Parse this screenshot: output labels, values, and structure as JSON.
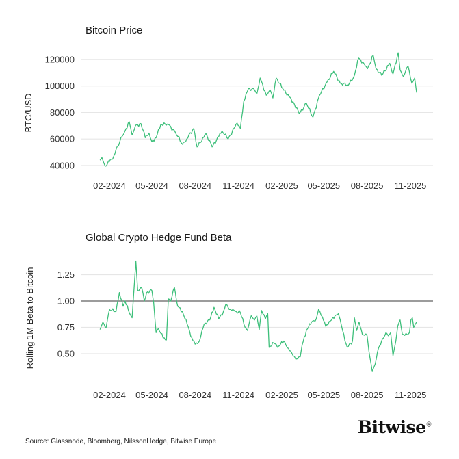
{
  "colors": {
    "line": "#3dbf7a",
    "grid": "#e6e6e6",
    "reference": "#666666"
  },
  "source": "Source: Glassnode, Bloomberg, NilssonHedge, Bitwise Europe",
  "logo": "Bitwise",
  "chart_data": [
    {
      "type": "line",
      "title": "Bitcoin Price",
      "xlabel": "",
      "ylabel": "BTC/USD",
      "ylim": [
        35000,
        125000
      ],
      "yticks": [
        "40000",
        "60000",
        "80000",
        "100000",
        "120000"
      ],
      "xticks": [
        "02-2024",
        "05-2024",
        "08-2024",
        "11-2024",
        "02-2025",
        "05-2025",
        "08-2025",
        "11-2025"
      ],
      "grid": true,
      "series": [
        {
          "x": [
            "2024-01-12",
            "2024-01-16",
            "2024-01-20",
            "2024-01-23",
            "2024-02-01",
            "2024-02-10",
            "2024-02-15",
            "2024-02-28",
            "2024-03-05",
            "2024-03-14",
            "2024-03-20",
            "2024-03-27",
            "2024-04-08",
            "2024-04-17",
            "2024-04-25",
            "2024-05-01",
            "2024-05-10",
            "2024-05-20",
            "2024-06-05",
            "2024-06-20",
            "2024-07-05",
            "2024-07-14",
            "2024-07-29",
            "2024-08-05",
            "2024-08-24",
            "2024-09-06",
            "2024-09-27",
            "2024-10-10",
            "2024-10-29",
            "2024-11-05",
            "2024-11-12",
            "2024-11-22",
            "2024-12-05",
            "2024-12-10",
            "2024-12-17",
            "2024-12-30",
            "2025-01-07",
            "2025-01-13",
            "2025-01-20",
            "2025-02-03",
            "2025-02-25",
            "2025-03-10",
            "2025-03-25",
            "2025-04-08",
            "2025-04-22",
            "2025-05-08",
            "2025-05-22",
            "2025-06-05",
            "2025-06-22",
            "2025-07-05",
            "2025-07-14",
            "2025-07-25",
            "2025-08-02",
            "2025-08-14",
            "2025-08-20",
            "2025-09-01",
            "2025-09-18",
            "2025-09-25",
            "2025-10-06",
            "2025-10-10",
            "2025-10-17",
            "2025-10-27",
            "2025-11-04",
            "2025-11-10",
            "2025-11-14"
          ],
          "values": [
            44000,
            46000,
            42000,
            39500,
            43000,
            47000,
            52000,
            62000,
            66000,
            73000,
            63000,
            70000,
            71500,
            61000,
            64500,
            58000,
            61000,
            71000,
            71000,
            65000,
            56000,
            60000,
            68000,
            54000,
            64000,
            54000,
            66000,
            60000,
            72000,
            68000,
            88000,
            98000,
            97000,
            94000,
            106000,
            93000,
            97000,
            91000,
            106000,
            98000,
            88000,
            79000,
            87000,
            76500,
            93000,
            103000,
            111000,
            102000,
            100500,
            108000,
            121000,
            117000,
            113000,
            123000,
            113000,
            108000,
            117000,
            109000,
            125000,
            112000,
            107000,
            115000,
            102000,
            106000,
            95000
          ]
        }
      ]
    },
    {
      "type": "line",
      "title": "Global Crypto Hedge Fund Beta",
      "xlabel": "",
      "ylabel": "Rolling 1M Beta to Bitcoin",
      "ylim": [
        0.25,
        1.45
      ],
      "yticks": [
        "0.50",
        "0.75",
        "1.00",
        "1.25"
      ],
      "reference_line": 1.0,
      "xticks": [
        "02-2024",
        "05-2024",
        "08-2024",
        "11-2024",
        "02-2025",
        "05-2025",
        "08-2025",
        "11-2025"
      ],
      "grid": true,
      "series": [
        {
          "x": [
            "2024-01-12",
            "2024-01-18",
            "2024-01-25",
            "2024-02-01",
            "2024-02-15",
            "2024-02-22",
            "2024-03-01",
            "2024-03-05",
            "2024-03-15",
            "2024-03-20",
            "2024-03-25",
            "2024-03-28",
            "2024-04-01",
            "2024-04-10",
            "2024-04-15",
            "2024-04-20",
            "2024-05-01",
            "2024-05-05",
            "2024-05-10",
            "2024-05-15",
            "2024-05-25",
            "2024-06-01",
            "2024-06-05",
            "2024-06-10",
            "2024-06-18",
            "2024-06-25",
            "2024-07-05",
            "2024-07-15",
            "2024-07-25",
            "2024-08-01",
            "2024-08-10",
            "2024-08-20",
            "2024-09-01",
            "2024-09-10",
            "2024-09-20",
            "2024-09-30",
            "2024-10-05",
            "2024-10-15",
            "2024-10-25",
            "2024-11-05",
            "2024-11-15",
            "2024-11-20",
            "2024-11-28",
            "2024-12-05",
            "2024-12-10",
            "2024-12-15",
            "2024-12-20",
            "2024-12-28",
            "2025-01-02",
            "2025-01-05",
            "2025-01-15",
            "2025-01-25",
            "2025-02-05",
            "2025-02-15",
            "2025-02-25",
            "2025-03-05",
            "2025-03-12",
            "2025-03-16",
            "2025-03-25",
            "2025-04-05",
            "2025-04-15",
            "2025-04-20",
            "2025-04-28",
            "2025-05-05",
            "2025-05-15",
            "2025-05-25",
            "2025-06-01",
            "2025-06-05",
            "2025-06-15",
            "2025-06-20",
            "2025-07-01",
            "2025-07-05",
            "2025-07-10",
            "2025-07-15",
            "2025-07-22",
            "2025-08-01",
            "2025-08-05",
            "2025-08-12",
            "2025-08-18",
            "2025-08-25",
            "2025-09-05",
            "2025-09-10",
            "2025-09-15",
            "2025-09-20",
            "2025-09-25",
            "2025-10-01",
            "2025-10-05",
            "2025-10-10",
            "2025-10-15",
            "2025-10-25",
            "2025-10-30",
            "2025-11-02",
            "2025-11-05",
            "2025-11-08",
            "2025-11-14"
          ],
          "values": [
            0.73,
            0.8,
            0.75,
            0.92,
            0.9,
            1.08,
            0.95,
            1.0,
            0.88,
            0.84,
            1.17,
            1.38,
            1.1,
            1.12,
            1.0,
            1.08,
            1.1,
            0.98,
            0.7,
            0.74,
            0.65,
            0.63,
            1.02,
            1.0,
            1.13,
            0.95,
            0.9,
            0.78,
            0.65,
            0.59,
            0.62,
            0.78,
            0.82,
            0.94,
            0.83,
            0.9,
            0.97,
            0.92,
            0.9,
            0.89,
            0.75,
            0.72,
            0.86,
            0.82,
            0.86,
            0.73,
            0.91,
            0.83,
            0.88,
            0.56,
            0.6,
            0.57,
            0.62,
            0.55,
            0.48,
            0.45,
            0.47,
            0.58,
            0.72,
            0.8,
            0.83,
            0.92,
            0.85,
            0.76,
            0.81,
            0.86,
            0.88,
            0.82,
            0.62,
            0.56,
            0.62,
            0.84,
            0.72,
            0.8,
            0.68,
            0.67,
            0.52,
            0.33,
            0.4,
            0.55,
            0.65,
            0.7,
            0.67,
            0.7,
            0.48,
            0.62,
            0.76,
            0.82,
            0.68,
            0.68,
            0.7,
            0.82,
            0.84,
            0.75,
            0.8
          ]
        }
      ]
    }
  ]
}
